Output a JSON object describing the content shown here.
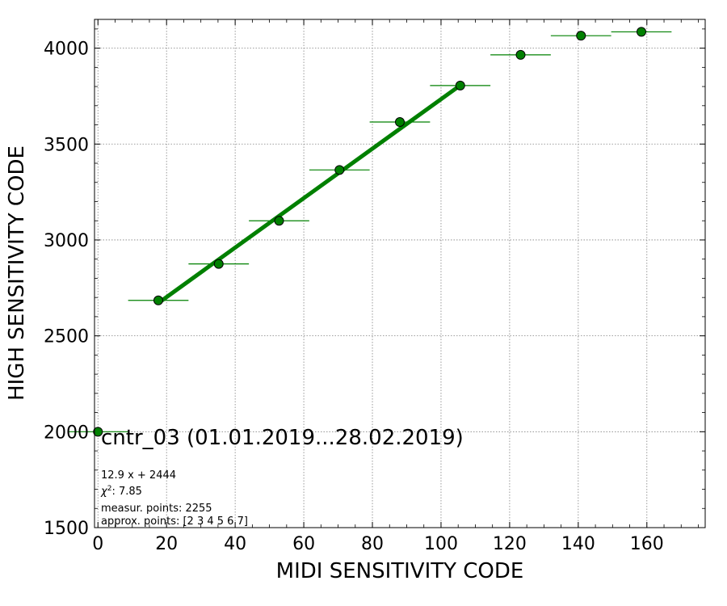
{
  "chart_data": {
    "type": "scatter",
    "title": "cntr_03 (01.01.2019...28.02.2019)",
    "xlabel": "MIDI SENSITIVITY CODE",
    "ylabel": "HIGH SENSITIVITY CODE",
    "xlim": [
      -1,
      177
    ],
    "ylim": [
      1500,
      4150
    ],
    "xticks": [
      0,
      20,
      40,
      60,
      80,
      100,
      120,
      140,
      160
    ],
    "yticks": [
      1500,
      2000,
      2500,
      3000,
      3500,
      4000
    ],
    "grid": true,
    "colors": {
      "marker": "#008000",
      "line": "#008000",
      "grid": "#808080"
    },
    "points": {
      "x": [
        0.0,
        17.6,
        35.2,
        52.8,
        70.4,
        88.0,
        105.6,
        123.2,
        140.8,
        158.4
      ],
      "y": [
        2000,
        2685,
        2875,
        3100,
        3365,
        3615,
        3805,
        3965,
        4065,
        4085
      ],
      "xerr": [
        8.8,
        8.8,
        8.8,
        8.8,
        8.8,
        8.8,
        8.8,
        8.8,
        8.8,
        8.8
      ]
    },
    "fit": {
      "slope": 12.9,
      "intercept": 2444,
      "x_range": [
        17.6,
        105.6
      ]
    },
    "annotations": {
      "equation": "12.9 x + 2444",
      "chi2_label": "χ",
      "chi2_sup": "2",
      "chi2_value": ": 7.85",
      "measur_points": "measur. points: 2255",
      "approx_points": "approx. points: [2 3 4 5 6 7]"
    }
  }
}
